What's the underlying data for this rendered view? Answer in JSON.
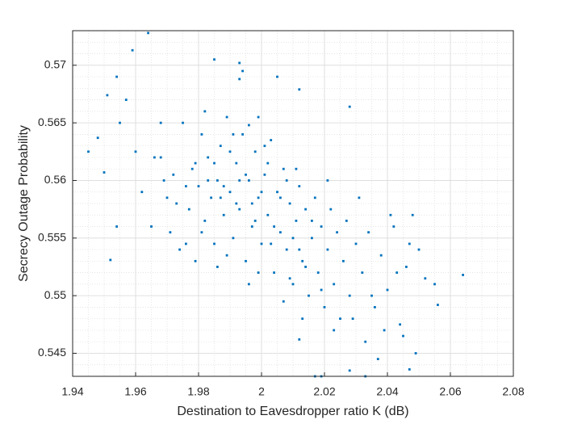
{
  "chart_data": {
    "type": "scatter",
    "x_label": "Destination to Eavesdropper ratio K (dB)",
    "y_label": "Secrecy Outage Probability",
    "color": "#0072bd",
    "grid": true,
    "minor_grid": true,
    "xlim": [
      1.94,
      2.08
    ],
    "xticks": [
      1.94,
      1.96,
      1.98,
      2,
      2.02,
      2.04,
      2.06,
      2.08
    ],
    "ylim": [
      0.543,
      0.573
    ],
    "yticks": [
      0.545,
      0.55,
      0.555,
      0.56,
      0.565,
      0.57
    ],
    "x": [
      1.964,
      1.959,
      1.985,
      1.993,
      1.994,
      1.993,
      2.064,
      2.056,
      2.049,
      2.047,
      2.017,
      2.019,
      1.945,
      1.948,
      1.95,
      1.952,
      1.951,
      1.954,
      2.028,
      2.005,
      2.012,
      1.962,
      1.965,
      1.968,
      1.97,
      1.972,
      1.974,
      1.975,
      1.977,
      1.978,
      1.979,
      1.98,
      1.981,
      1.982,
      1.983,
      1.984,
      1.985,
      1.986,
      1.987,
      1.988,
      1.989,
      1.99,
      1.991,
      1.992,
      1.993,
      1.994,
      1.995,
      1.996,
      1.997,
      1.998,
      1.999,
      2.0,
      2.001,
      2.002,
      2.003,
      2.004,
      2.005,
      2.006,
      2.007,
      2.008,
      2.009,
      2.01,
      2.011,
      2.012,
      2.013,
      2.014,
      2.015,
      2.016,
      2.017,
      2.018,
      2.019,
      2.02,
      2.021,
      2.022,
      2.023,
      2.024,
      2.025,
      2.026,
      2.027,
      2.028,
      2.03,
      2.032,
      2.034,
      2.036,
      2.038,
      2.04,
      2.042,
      2.044,
      2.046,
      2.048,
      2.05,
      2.052,
      1.985,
      1.988,
      1.99,
      1.992,
      1.995,
      1.998,
      2.0,
      2.002,
      2.004,
      2.006,
      2.008,
      2.01,
      2.012,
      2.014,
      2.016,
      2.003,
      1.997,
      1.993,
      1.987,
      1.983,
      1.979,
      1.976,
      1.973,
      1.969,
      1.966,
      1.971,
      1.981,
      1.989,
      1.999,
      2.009,
      2.019,
      2.029,
      2.039,
      2.033,
      2.023,
      2.013,
      2.007,
      1.996,
      1.986,
      1.976,
      1.991,
      2.001,
      2.011,
      2.021,
      2.031,
      2.041,
      1.999,
      1.996,
      1.982,
      1.968,
      1.96,
      1.957,
      1.955,
      1.954,
      2.037,
      2.045,
      2.028,
      2.012,
      2.035,
      2.043,
      2.047,
      2.055,
      2.033
    ],
    "values": [
      0.5728,
      0.5713,
      0.5705,
      0.5702,
      0.5695,
      0.5688,
      0.5518,
      0.5492,
      0.545,
      0.5436,
      0.543,
      0.543,
      0.5625,
      0.5637,
      0.5607,
      0.5531,
      0.5674,
      0.569,
      0.5664,
      0.569,
      0.5679,
      0.559,
      0.556,
      0.562,
      0.5585,
      0.5605,
      0.554,
      0.565,
      0.5575,
      0.561,
      0.553,
      0.5595,
      0.564,
      0.5565,
      0.562,
      0.5585,
      0.5545,
      0.56,
      0.563,
      0.557,
      0.5655,
      0.559,
      0.555,
      0.5615,
      0.5575,
      0.564,
      0.553,
      0.56,
      0.556,
      0.5625,
      0.5585,
      0.5545,
      0.5605,
      0.557,
      0.5635,
      0.552,
      0.559,
      0.5555,
      0.561,
      0.554,
      0.558,
      0.551,
      0.5565,
      0.5595,
      0.553,
      0.5575,
      0.55,
      0.555,
      0.5585,
      0.552,
      0.556,
      0.549,
      0.554,
      0.5575,
      0.551,
      0.5555,
      0.548,
      0.553,
      0.5565,
      0.55,
      0.5545,
      0.552,
      0.5555,
      0.549,
      0.5535,
      0.5505,
      0.556,
      0.5475,
      0.5525,
      0.557,
      0.554,
      0.5515,
      0.5615,
      0.5595,
      0.5625,
      0.558,
      0.5605,
      0.5565,
      0.559,
      0.5615,
      0.556,
      0.5585,
      0.56,
      0.555,
      0.554,
      0.5525,
      0.5565,
      0.5545,
      0.558,
      0.56,
      0.5585,
      0.56,
      0.5615,
      0.5595,
      0.558,
      0.56,
      0.562,
      0.5555,
      0.5555,
      0.5535,
      0.552,
      0.5515,
      0.5505,
      0.548,
      0.547,
      0.546,
      0.547,
      0.548,
      0.5495,
      0.551,
      0.5525,
      0.5545,
      0.564,
      0.563,
      0.561,
      0.56,
      0.5585,
      0.557,
      0.5655,
      0.5648,
      0.566,
      0.565,
      0.5625,
      0.567,
      0.565,
      0.556,
      0.5445,
      0.5465,
      0.5435,
      0.5462,
      0.55,
      0.552,
      0.5545,
      0.551,
      0.543
    ]
  }
}
